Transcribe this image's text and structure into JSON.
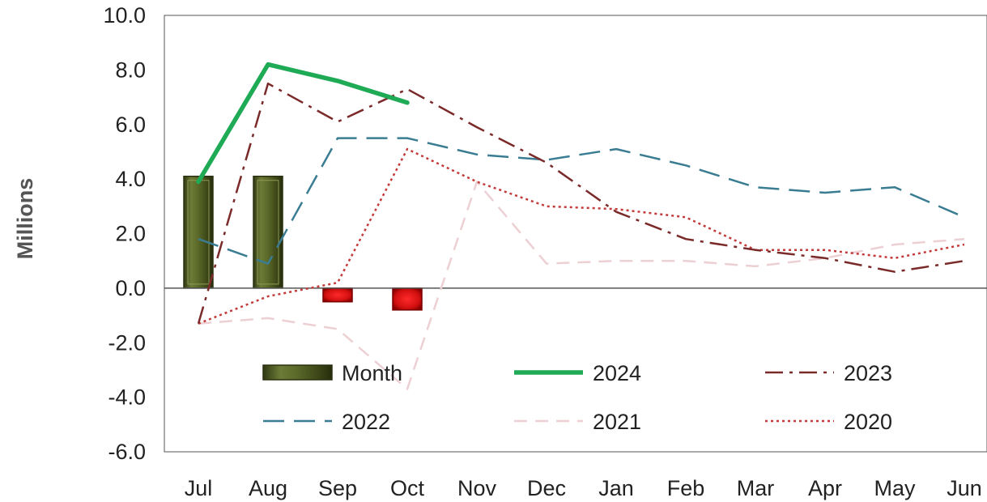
{
  "chart_data": {
    "type": "bar+line",
    "ylabel": "Millions",
    "ylim": [
      -6,
      10
    ],
    "yticks": [
      "10.0",
      "8.0",
      "6.0",
      "4.0",
      "2.0",
      "0.0",
      "-2.0",
      "-4.0",
      "-6.0"
    ],
    "yticks_values": [
      10,
      8,
      6,
      4,
      2,
      0,
      -2,
      -4,
      -6
    ],
    "categories": [
      "Jul",
      "Aug",
      "Sep",
      "Oct",
      "Nov",
      "Dec",
      "Jan",
      "Feb",
      "Mar",
      "Apr",
      "May",
      "Jun"
    ],
    "grid": false,
    "bar_series": {
      "name": "Month",
      "values": [
        4.1,
        4.1,
        -0.5,
        -0.8,
        null,
        null,
        null,
        null,
        null,
        null,
        null,
        null
      ],
      "colors": {
        "positive": "#4e5a23",
        "negative": "#d81f1f"
      }
    },
    "series": [
      {
        "name": "2024",
        "style": "solid-thick",
        "color": "#1faa55",
        "values": [
          3.9,
          8.2,
          7.6,
          6.8,
          null,
          null,
          null,
          null,
          null,
          null,
          null,
          null
        ]
      },
      {
        "name": "2023",
        "style": "dash-dot",
        "color": "#7b2a2a",
        "values": [
          -1.3,
          7.5,
          6.1,
          7.3,
          5.9,
          4.6,
          2.8,
          1.8,
          1.4,
          1.1,
          0.6,
          1.0
        ]
      },
      {
        "name": "2022",
        "style": "long-dash",
        "color": "#3a7d92",
        "values": [
          1.8,
          0.9,
          5.5,
          5.5,
          4.9,
          4.7,
          5.1,
          4.5,
          3.7,
          3.5,
          3.7,
          2.6
        ]
      },
      {
        "name": "2021",
        "style": "dash-light",
        "color": "#ecd0d3",
        "values": [
          -1.3,
          -1.1,
          -1.5,
          -3.7,
          3.9,
          0.9,
          1.0,
          1.0,
          0.8,
          1.1,
          1.6,
          1.8
        ]
      },
      {
        "name": "2020",
        "style": "dotted",
        "color": "#c43a3a",
        "values": [
          -1.3,
          -0.3,
          0.2,
          5.1,
          3.9,
          3.0,
          2.9,
          2.6,
          1.4,
          1.4,
          1.1,
          1.6
        ]
      }
    ],
    "legend": {
      "placement": "inside-bottom",
      "entries": [
        "Month",
        "2024",
        "2023",
        "2022",
        "2021",
        "2020"
      ]
    }
  }
}
